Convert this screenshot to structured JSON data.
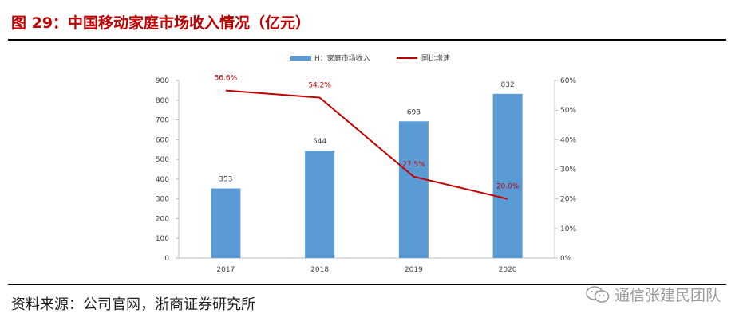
{
  "figure": {
    "title": "图 29：中国移动家庭市场收入情况（亿元）",
    "source": "资料来源：公司官网，浙商证券研究所",
    "watermark": "通信张建民团队"
  },
  "colors": {
    "bar": "#5b9bd5",
    "line": "#c00000",
    "title": "#c00000",
    "label": "#c00000"
  },
  "chart_data": {
    "type": "bar",
    "categories": [
      "2017",
      "2018",
      "2019",
      "2020"
    ],
    "series": [
      {
        "name": "H：家庭市场收入",
        "type": "bar",
        "axis": "left",
        "values": [
          353,
          544,
          693,
          832
        ],
        "labels": [
          "353",
          "544",
          "693",
          "832"
        ]
      },
      {
        "name": "同比增速",
        "type": "line",
        "axis": "right",
        "values": [
          56.6,
          54.2,
          27.5,
          20.0
        ],
        "labels": [
          "56.6%",
          "54.2%",
          "27.5%",
          "20.0%"
        ]
      }
    ],
    "ylim_left": [
      0,
      900
    ],
    "yticks_left": [
      "0",
      "100",
      "200",
      "300",
      "400",
      "500",
      "600",
      "700",
      "800",
      "900"
    ],
    "ylim_right": [
      0,
      60
    ],
    "yticks_right": [
      "0%",
      "10%",
      "20%",
      "30%",
      "40%",
      "50%",
      "60%"
    ],
    "legend_position": "top",
    "grid": false
  }
}
